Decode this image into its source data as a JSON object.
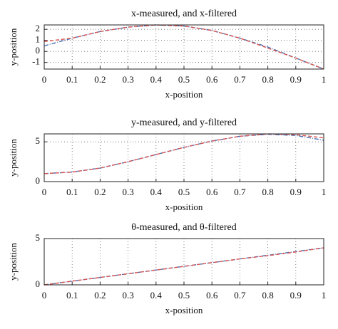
{
  "chart_data": [
    {
      "type": "line",
      "title": "x-measured, and x-filtered",
      "xlabel": "x-position",
      "ylabel": "y-position",
      "x": [
        0,
        0.1,
        0.2,
        0.3,
        0.4,
        0.5,
        0.6,
        0.7,
        0.8,
        0.9,
        1
      ],
      "series": [
        {
          "color": "#4a6fb5",
          "values": [
            0.5,
            1.2,
            1.8,
            2.2,
            2.4,
            2.3,
            1.9,
            1.2,
            0.4,
            -0.6,
            -1.6
          ]
        },
        {
          "color": "#d9534f",
          "values": [
            0.9,
            1.2,
            1.8,
            2.2,
            2.4,
            2.3,
            1.9,
            1.2,
            0.3,
            -0.6,
            -1.6
          ]
        }
      ],
      "xlim": [
        0,
        1
      ],
      "xticks": [
        0,
        0.1,
        0.2,
        0.3,
        0.4,
        0.5,
        0.6,
        0.7,
        0.8,
        0.9,
        1
      ],
      "ylim": [
        -1.6,
        2.4
      ],
      "yticks": [
        -1,
        0,
        1,
        2
      ],
      "grid": true
    },
    {
      "type": "line",
      "title": "y-measured, and y-filtered",
      "xlabel": "x-position",
      "ylabel": "y-position",
      "x": [
        0,
        0.1,
        0.2,
        0.3,
        0.4,
        0.5,
        0.6,
        0.7,
        0.8,
        0.9,
        1
      ],
      "series": [
        {
          "color": "#4a6fb5",
          "values": [
            1,
            1.2,
            1.7,
            2.5,
            3.4,
            4.3,
            5.1,
            5.7,
            5.95,
            5.8,
            5.2
          ]
        },
        {
          "color": "#d9534f",
          "values": [
            1,
            1.2,
            1.7,
            2.5,
            3.4,
            4.3,
            5.1,
            5.7,
            6.0,
            5.9,
            5.5
          ]
        }
      ],
      "xlim": [
        0,
        1
      ],
      "xticks": [
        0,
        0.1,
        0.2,
        0.3,
        0.4,
        0.5,
        0.6,
        0.7,
        0.8,
        0.9,
        1
      ],
      "ylim": [
        0,
        6
      ],
      "yticks": [
        0,
        5
      ],
      "grid": true
    },
    {
      "type": "line",
      "title": "θ-measured, and θ-filtered",
      "xlabel": "x-position",
      "ylabel": "y-position",
      "x": [
        0,
        0.1,
        0.2,
        0.3,
        0.4,
        0.5,
        0.6,
        0.7,
        0.8,
        0.9,
        1
      ],
      "series": [
        {
          "color": "#4a6fb5",
          "values": [
            0,
            0.4,
            0.8,
            1.2,
            1.6,
            2.0,
            2.4,
            2.8,
            3.2,
            3.6,
            4.0
          ]
        },
        {
          "color": "#d9534f",
          "values": [
            0,
            0.4,
            0.8,
            1.2,
            1.6,
            2.0,
            2.4,
            2.8,
            3.15,
            3.55,
            4.0
          ]
        }
      ],
      "xlim": [
        0,
        1
      ],
      "xticks": [
        0,
        0.1,
        0.2,
        0.3,
        0.4,
        0.5,
        0.6,
        0.7,
        0.8,
        0.9,
        1
      ],
      "ylim": [
        0,
        5
      ],
      "yticks": [
        0,
        5
      ],
      "grid": true
    }
  ]
}
